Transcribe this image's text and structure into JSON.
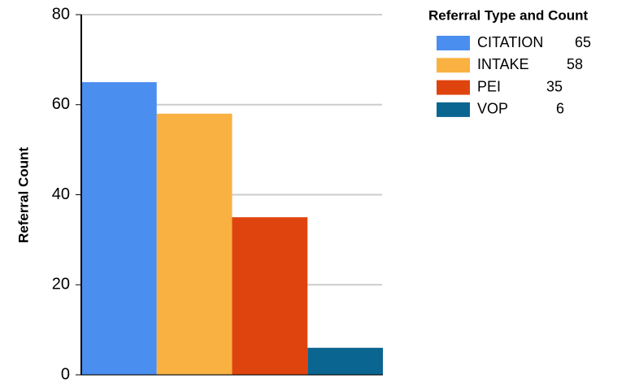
{
  "chart_data": {
    "type": "bar",
    "y_label": "Referral Count",
    "legend_title": "Referral Type and Count",
    "series": [
      {
        "name": "CITATION",
        "color": "#4a8ef0",
        "values": [
          65
        ]
      },
      {
        "name": "INTAKE",
        "color": "#f9b142",
        "values": [
          58
        ]
      },
      {
        "name": "PEI",
        "color": "#e0440e",
        "values": [
          35
        ]
      },
      {
        "name": "VOP",
        "color": "#0b6591",
        "values": [
          6
        ]
      }
    ],
    "ylim": [
      0,
      80
    ],
    "yticks": [
      0,
      20,
      40,
      60,
      80
    ],
    "grid": true,
    "legend": "right"
  }
}
